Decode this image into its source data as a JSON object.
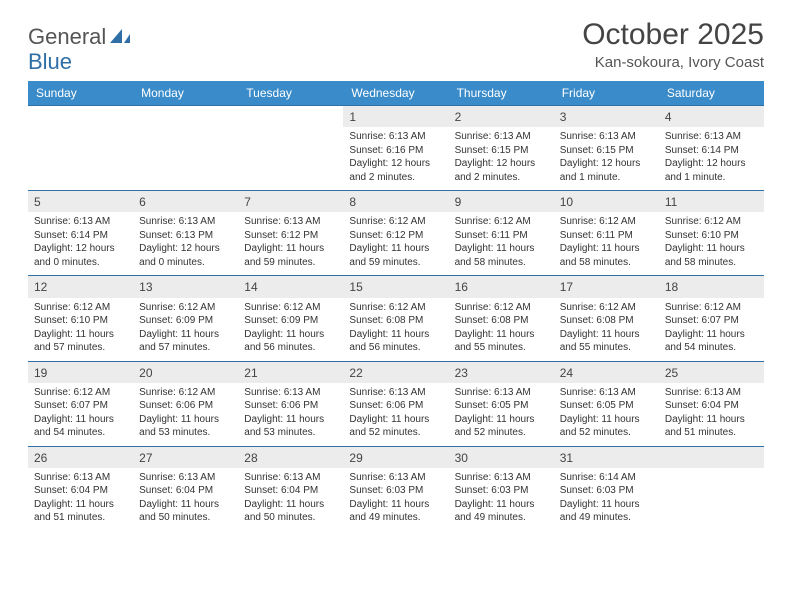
{
  "brand": {
    "part1": "General",
    "part2": "Blue"
  },
  "title": {
    "month": "October 2025",
    "location": "Kan-sokoura, Ivory Coast"
  },
  "colors": {
    "header_bg": "#3a8bc9",
    "header_text": "#ffffff",
    "border": "#2f6fa6",
    "daynum_bg": "#ececec",
    "text": "#333333",
    "brand_gray": "#6a6a6a",
    "brand_blue": "#2f6fa6"
  },
  "day_headers": [
    "Sunday",
    "Monday",
    "Tuesday",
    "Wednesday",
    "Thursday",
    "Friday",
    "Saturday"
  ],
  "layout": {
    "num_weeks": 5,
    "first_day_col": 3
  },
  "days": [
    {
      "n": "1",
      "sunrise": "6:13 AM",
      "sunset": "6:16 PM",
      "daylight": "12 hours and 2 minutes."
    },
    {
      "n": "2",
      "sunrise": "6:13 AM",
      "sunset": "6:15 PM",
      "daylight": "12 hours and 2 minutes."
    },
    {
      "n": "3",
      "sunrise": "6:13 AM",
      "sunset": "6:15 PM",
      "daylight": "12 hours and 1 minute."
    },
    {
      "n": "4",
      "sunrise": "6:13 AM",
      "sunset": "6:14 PM",
      "daylight": "12 hours and 1 minute."
    },
    {
      "n": "5",
      "sunrise": "6:13 AM",
      "sunset": "6:14 PM",
      "daylight": "12 hours and 0 minutes."
    },
    {
      "n": "6",
      "sunrise": "6:13 AM",
      "sunset": "6:13 PM",
      "daylight": "12 hours and 0 minutes."
    },
    {
      "n": "7",
      "sunrise": "6:13 AM",
      "sunset": "6:12 PM",
      "daylight": "11 hours and 59 minutes."
    },
    {
      "n": "8",
      "sunrise": "6:12 AM",
      "sunset": "6:12 PM",
      "daylight": "11 hours and 59 minutes."
    },
    {
      "n": "9",
      "sunrise": "6:12 AM",
      "sunset": "6:11 PM",
      "daylight": "11 hours and 58 minutes."
    },
    {
      "n": "10",
      "sunrise": "6:12 AM",
      "sunset": "6:11 PM",
      "daylight": "11 hours and 58 minutes."
    },
    {
      "n": "11",
      "sunrise": "6:12 AM",
      "sunset": "6:10 PM",
      "daylight": "11 hours and 58 minutes."
    },
    {
      "n": "12",
      "sunrise": "6:12 AM",
      "sunset": "6:10 PM",
      "daylight": "11 hours and 57 minutes."
    },
    {
      "n": "13",
      "sunrise": "6:12 AM",
      "sunset": "6:09 PM",
      "daylight": "11 hours and 57 minutes."
    },
    {
      "n": "14",
      "sunrise": "6:12 AM",
      "sunset": "6:09 PM",
      "daylight": "11 hours and 56 minutes."
    },
    {
      "n": "15",
      "sunrise": "6:12 AM",
      "sunset": "6:08 PM",
      "daylight": "11 hours and 56 minutes."
    },
    {
      "n": "16",
      "sunrise": "6:12 AM",
      "sunset": "6:08 PM",
      "daylight": "11 hours and 55 minutes."
    },
    {
      "n": "17",
      "sunrise": "6:12 AM",
      "sunset": "6:08 PM",
      "daylight": "11 hours and 55 minutes."
    },
    {
      "n": "18",
      "sunrise": "6:12 AM",
      "sunset": "6:07 PM",
      "daylight": "11 hours and 54 minutes."
    },
    {
      "n": "19",
      "sunrise": "6:12 AM",
      "sunset": "6:07 PM",
      "daylight": "11 hours and 54 minutes."
    },
    {
      "n": "20",
      "sunrise": "6:12 AM",
      "sunset": "6:06 PM",
      "daylight": "11 hours and 53 minutes."
    },
    {
      "n": "21",
      "sunrise": "6:13 AM",
      "sunset": "6:06 PM",
      "daylight": "11 hours and 53 minutes."
    },
    {
      "n": "22",
      "sunrise": "6:13 AM",
      "sunset": "6:06 PM",
      "daylight": "11 hours and 52 minutes."
    },
    {
      "n": "23",
      "sunrise": "6:13 AM",
      "sunset": "6:05 PM",
      "daylight": "11 hours and 52 minutes."
    },
    {
      "n": "24",
      "sunrise": "6:13 AM",
      "sunset": "6:05 PM",
      "daylight": "11 hours and 52 minutes."
    },
    {
      "n": "25",
      "sunrise": "6:13 AM",
      "sunset": "6:04 PM",
      "daylight": "11 hours and 51 minutes."
    },
    {
      "n": "26",
      "sunrise": "6:13 AM",
      "sunset": "6:04 PM",
      "daylight": "11 hours and 51 minutes."
    },
    {
      "n": "27",
      "sunrise": "6:13 AM",
      "sunset": "6:04 PM",
      "daylight": "11 hours and 50 minutes."
    },
    {
      "n": "28",
      "sunrise": "6:13 AM",
      "sunset": "6:04 PM",
      "daylight": "11 hours and 50 minutes."
    },
    {
      "n": "29",
      "sunrise": "6:13 AM",
      "sunset": "6:03 PM",
      "daylight": "11 hours and 49 minutes."
    },
    {
      "n": "30",
      "sunrise": "6:13 AM",
      "sunset": "6:03 PM",
      "daylight": "11 hours and 49 minutes."
    },
    {
      "n": "31",
      "sunrise": "6:14 AM",
      "sunset": "6:03 PM",
      "daylight": "11 hours and 49 minutes."
    }
  ],
  "labels": {
    "sunrise": "Sunrise: ",
    "sunset": "Sunset: ",
    "daylight": "Daylight: "
  }
}
